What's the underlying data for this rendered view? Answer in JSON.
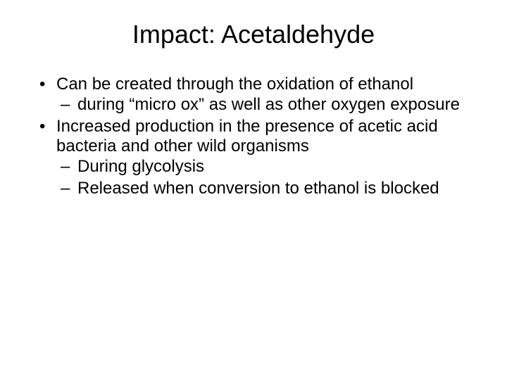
{
  "slide": {
    "title": "Impact: Acetaldehyde",
    "bullets": [
      {
        "text": "Can be created through the oxidation of ethanol",
        "sub": [
          "during “micro ox” as well as other oxygen exposure"
        ]
      },
      {
        "text": "Increased production in the presence of acetic acid bacteria and other wild organisms",
        "sub": [
          "During glycolysis",
          "Released when conversion to ethanol is blocked"
        ]
      }
    ]
  },
  "style": {
    "background_color": "#ffffff",
    "text_color": "#000000",
    "title_fontsize": 36,
    "body_fontsize": 24,
    "font_family": "Arial"
  }
}
